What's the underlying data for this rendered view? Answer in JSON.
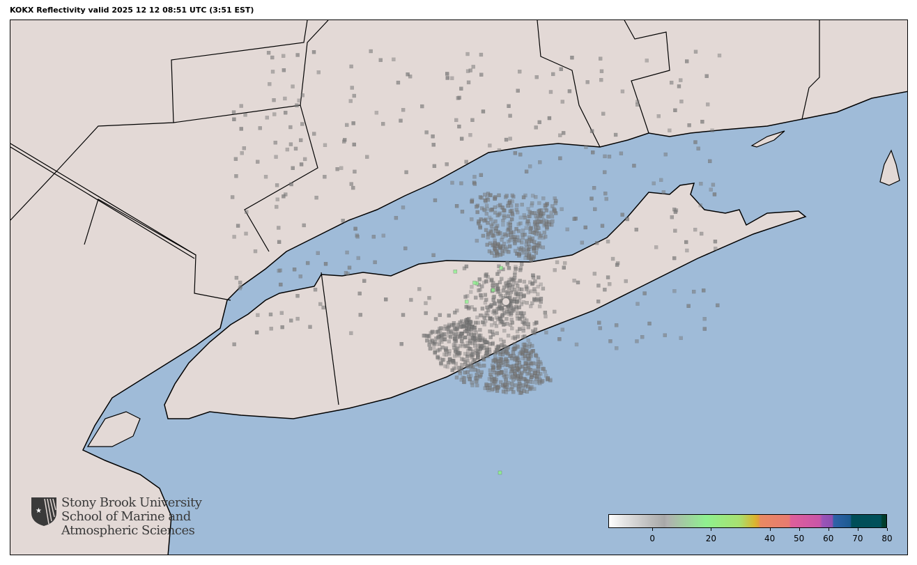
{
  "title": "KOKX Reflectivity valid 2025 12 12 08:51 UTC (3:51 EST)",
  "colors": {
    "ocean": "#9fbbd8",
    "land": "#e3d9d6",
    "borders": "#000000",
    "echo": "#7a7a7a",
    "echo_light": "#8ff08f"
  },
  "radar_site": "KOKX",
  "logo": {
    "line1": "Stony Brook University",
    "line2": "School of Marine and",
    "line3": "Atmospheric Sciences"
  },
  "colorbar": {
    "units_min": -15,
    "units_max": 80,
    "ticks": [
      {
        "value": 0,
        "label": "0"
      },
      {
        "value": 20,
        "label": "20"
      },
      {
        "value": 40,
        "label": "40"
      },
      {
        "value": 50,
        "label": "50"
      },
      {
        "value": 60,
        "label": "60"
      },
      {
        "value": 70,
        "label": "70"
      },
      {
        "value": 80,
        "label": "80"
      }
    ]
  }
}
